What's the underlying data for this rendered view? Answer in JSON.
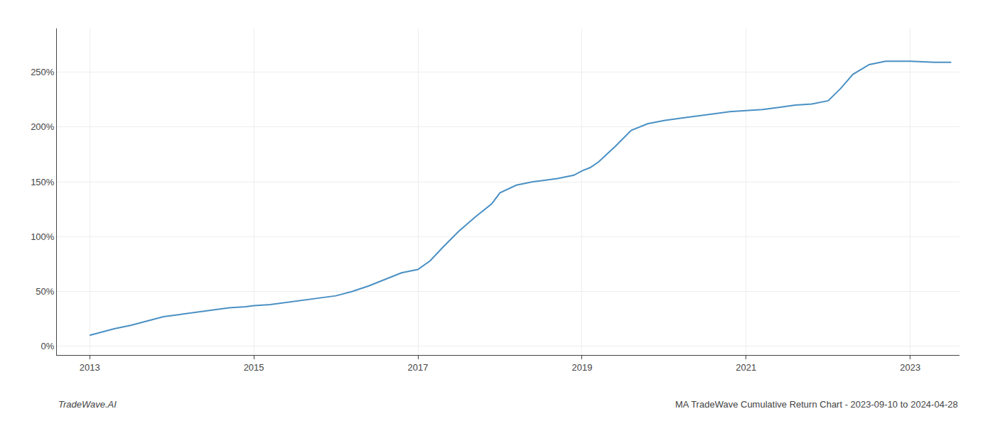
{
  "chart_data": {
    "type": "line",
    "x": [
      2013.0,
      2013.15,
      2013.3,
      2013.5,
      2013.7,
      2013.9,
      2014.1,
      2014.3,
      2014.5,
      2014.7,
      2014.9,
      2015.0,
      2015.2,
      2015.4,
      2015.6,
      2015.8,
      2016.0,
      2016.2,
      2016.4,
      2016.6,
      2016.8,
      2017.0,
      2017.15,
      2017.3,
      2017.5,
      2017.7,
      2017.9,
      2018.0,
      2018.2,
      2018.4,
      2018.5,
      2018.7,
      2018.9,
      2019.0,
      2019.1,
      2019.2,
      2019.4,
      2019.6,
      2019.8,
      2020.0,
      2020.2,
      2020.4,
      2020.6,
      2020.8,
      2021.0,
      2021.2,
      2021.4,
      2021.6,
      2021.8,
      2022.0,
      2022.15,
      2022.3,
      2022.5,
      2022.7,
      2023.0,
      2023.3,
      2023.5
    ],
    "values": [
      10,
      13,
      16,
      19,
      23,
      27,
      29,
      31,
      33,
      35,
      36,
      37,
      38,
      40,
      42,
      44,
      46,
      50,
      55,
      61,
      67,
      70,
      78,
      90,
      105,
      118,
      130,
      140,
      147,
      150,
      151,
      153,
      156,
      160,
      163,
      168,
      182,
      197,
      203,
      206,
      208,
      210,
      212,
      214,
      215,
      216,
      218,
      220,
      221,
      224,
      235,
      248,
      257,
      260,
      260,
      259,
      259
    ],
    "color": "#4a90c4",
    "xlim": [
      2012.6,
      2023.6
    ],
    "xticks": [
      2013,
      2015,
      2017,
      2019,
      2021,
      2023
    ],
    "ylim": [
      -8,
      290
    ],
    "yticks": [
      {
        "value": 0,
        "label": "0%"
      },
      {
        "value": 50,
        "label": "50%"
      },
      {
        "value": 100,
        "label": "100%"
      },
      {
        "value": 150,
        "label": "150%"
      },
      {
        "value": 200,
        "label": "200%"
      },
      {
        "value": 250,
        "label": "250%"
      }
    ],
    "grid": true,
    "annotations": [
      "TradeWave.AI",
      "MA TradeWave Cumulative Return Chart - 2023-09-10 to 2024-04-28"
    ]
  }
}
